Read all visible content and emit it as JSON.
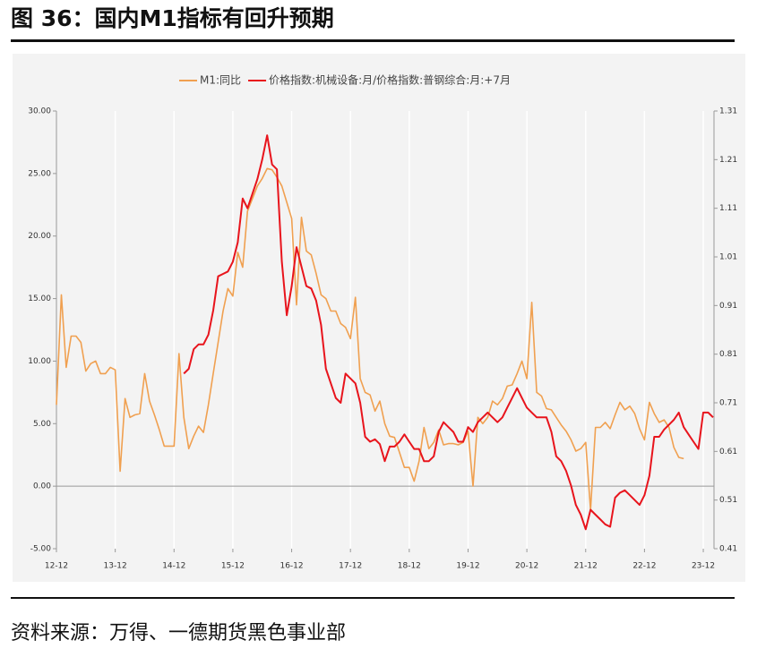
{
  "header": {
    "title": "图 36：国内M1指标有回升预期"
  },
  "footer": {
    "source": "资料来源：万得、一德期货黑色事业部"
  },
  "chart_data": {
    "type": "line",
    "categories": [
      "12-12",
      null,
      null,
      null,
      null,
      null,
      null,
      null,
      null,
      null,
      null,
      null,
      "13-12",
      null,
      null,
      null,
      null,
      null,
      null,
      null,
      null,
      null,
      null,
      null,
      "14-12",
      null,
      null,
      null,
      null,
      null,
      null,
      null,
      null,
      null,
      null,
      null,
      "15-12",
      null,
      null,
      null,
      null,
      null,
      null,
      null,
      null,
      null,
      null,
      null,
      "16-12",
      null,
      null,
      null,
      null,
      null,
      null,
      null,
      null,
      null,
      null,
      null,
      "17-12",
      null,
      null,
      null,
      null,
      null,
      null,
      null,
      null,
      null,
      null,
      null,
      "18-12",
      null,
      null,
      null,
      null,
      null,
      null,
      null,
      null,
      null,
      null,
      null,
      "19-12",
      null,
      null,
      null,
      null,
      null,
      null,
      null,
      null,
      null,
      null,
      null,
      "20-12",
      null,
      null,
      null,
      null,
      null,
      null,
      null,
      null,
      null,
      null,
      null,
      "21-12",
      null,
      null,
      null,
      null,
      null,
      null,
      null,
      null,
      null,
      null,
      null,
      "22-12",
      null,
      null,
      null,
      null,
      null,
      null,
      null,
      null,
      null,
      null,
      null,
      "23-12",
      null,
      null
    ],
    "series": [
      {
        "name": "M1:同比",
        "color": "#f0a050",
        "axis": "y",
        "values": [
          6.5,
          15.3,
          9.5,
          12,
          12,
          11.5,
          9.2,
          9.8,
          10,
          9,
          9,
          9.5,
          9.3,
          1.2,
          7,
          5.5,
          5.7,
          5.8,
          9,
          6.8,
          5.7,
          4.5,
          3.2,
          3.2,
          3.2,
          10.6,
          5.5,
          3,
          4,
          4.8,
          4.3,
          6.5,
          9,
          11.5,
          14,
          15.8,
          15.2,
          18.7,
          17.5,
          22,
          23,
          24,
          24.6,
          25.4,
          25.3,
          24.7,
          24,
          22.7,
          21.4,
          14.5,
          21.5,
          18.8,
          18.5,
          17,
          15.3,
          15,
          14,
          14,
          13,
          12.7,
          11.8,
          15.1,
          8.6,
          7.5,
          7.3,
          6,
          6.8,
          5,
          4,
          3.9,
          2.7,
          1.5,
          1.5,
          0.4,
          2,
          4.7,
          3,
          3.5,
          4.5,
          3.3,
          3.4,
          3.4,
          3.3,
          3.5,
          4.4,
          0,
          5.5,
          5,
          5.5,
          6.8,
          6.5,
          7,
          8,
          8.1,
          9,
          10,
          8.6,
          14.7,
          7.5,
          7.2,
          6.2,
          6.1,
          5.5,
          4.9,
          4.4,
          3.7,
          2.8,
          3,
          3.5,
          -1.9,
          4.7,
          4.7,
          5.1,
          4.6,
          5.7,
          6.7,
          6.1,
          6.4,
          5.8,
          4.6,
          3.7,
          6.7,
          5.8,
          5.1,
          5.3,
          4.7,
          3.1,
          2.3,
          2.2,
          null,
          null,
          null,
          null,
          null,
          null
        ]
      },
      {
        "name": "价格指数:机械设备:月/价格指数:普钢综合:月:+7月",
        "color": "#e8141c",
        "axis": "y2",
        "values": [
          null,
          null,
          null,
          null,
          null,
          null,
          null,
          null,
          null,
          null,
          null,
          null,
          null,
          null,
          null,
          null,
          null,
          null,
          null,
          null,
          null,
          null,
          null,
          null,
          null,
          null,
          0.77,
          0.78,
          0.82,
          0.83,
          0.83,
          0.85,
          0.9,
          0.97,
          0.975,
          0.98,
          1.0,
          1.04,
          1.13,
          1.11,
          1.14,
          1.17,
          1.21,
          1.26,
          1.2,
          1.19,
          1.0,
          0.89,
          0.95,
          1.03,
          0.99,
          0.95,
          0.945,
          0.92,
          0.87,
          0.78,
          0.75,
          0.72,
          0.71,
          0.77,
          0.76,
          0.75,
          0.71,
          0.64,
          0.63,
          0.635,
          0.625,
          0.59,
          0.62,
          0.62,
          0.63,
          0.645,
          0.63,
          0.615,
          0.615,
          0.59,
          0.59,
          0.6,
          0.65,
          0.67,
          0.66,
          0.65,
          0.63,
          0.63,
          0.66,
          0.65,
          0.67,
          0.68,
          0.69,
          0.68,
          0.67,
          0.68,
          0.7,
          0.72,
          0.74,
          0.72,
          0.7,
          0.69,
          0.68,
          0.68,
          0.68,
          0.65,
          0.6,
          0.59,
          0.57,
          0.54,
          0.5,
          0.48,
          0.45,
          0.49,
          0.48,
          0.47,
          0.46,
          0.455,
          0.515,
          0.525,
          0.53,
          0.52,
          0.51,
          0.5,
          0.52,
          0.56,
          0.64,
          0.64,
          0.655,
          0.665,
          0.675,
          0.69,
          0.66,
          0.645,
          0.63,
          0.615,
          0.69,
          0.69,
          0.68
        ]
      }
    ],
    "ylim": [
      -5,
      30
    ],
    "yticks": [
      {
        "value": -5,
        "label": "-5.00"
      },
      {
        "value": 0,
        "label": "0.00"
      },
      {
        "value": 5,
        "label": "5.00"
      },
      {
        "value": 10,
        "label": "10.00"
      },
      {
        "value": 15,
        "label": "15.00"
      },
      {
        "value": 20,
        "label": "20.00"
      },
      {
        "value": 25,
        "label": "25.00"
      },
      {
        "value": 30,
        "label": "30.00"
      }
    ],
    "y2lim": [
      0.41,
      1.31
    ],
    "y2ticks": [
      0.41,
      0.51,
      0.61,
      0.71,
      0.81,
      0.91,
      1.01,
      1.11,
      1.21,
      1.31
    ],
    "grid": true,
    "legend": "top"
  }
}
